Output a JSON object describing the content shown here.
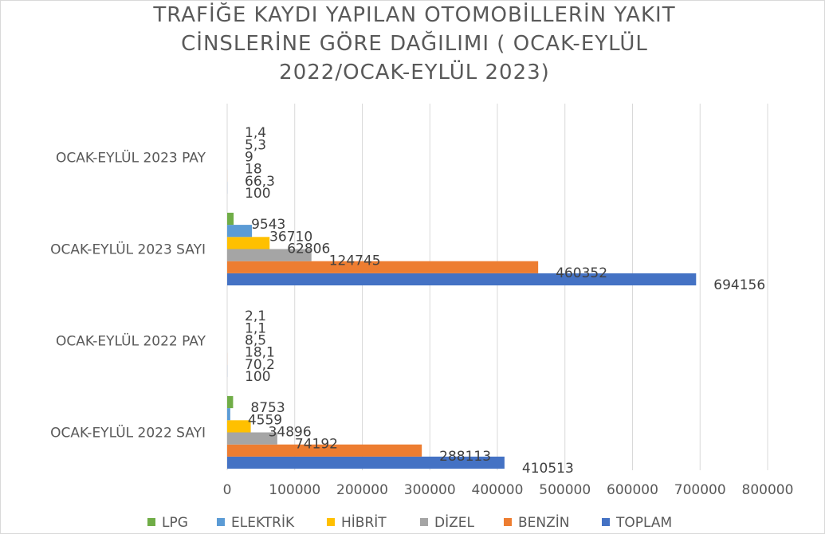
{
  "chart_data": {
    "type": "bar",
    "orientation": "horizontal",
    "title_lines": [
      "TRAFİĞE KAYDI YAPILAN OTOMOBİLLERİN YAKIT",
      "CİNSLERİNE GÖRE DAĞILIMI ( OCAK-EYLÜL",
      "2022/OCAK-EYLÜL 2023)"
    ],
    "categories": [
      "OCAK-EYLÜL 2022 SAYI",
      "OCAK-EYLÜL 2022 PAY",
      "OCAK-EYLÜL 2023 SAYI",
      "OCAK-EYLÜL 2023 PAY"
    ],
    "series": [
      {
        "name": "TOPLAM",
        "color": "#4472c4",
        "values": [
          410513,
          100,
          694156,
          100
        ],
        "labels": [
          "410513",
          "100",
          "694156",
          "100"
        ]
      },
      {
        "name": "BENZİN",
        "color": "#ed7d31",
        "values": [
          288113,
          70.2,
          460352,
          66.3
        ],
        "labels": [
          "288113",
          "70,2",
          "460352",
          "66,3"
        ]
      },
      {
        "name": "DİZEL",
        "color": "#a5a5a5",
        "values": [
          74192,
          18.1,
          124745,
          18
        ],
        "labels": [
          "74192",
          "18,1",
          "124745",
          "18"
        ]
      },
      {
        "name": "HİBRİT",
        "color": "#ffc000",
        "values": [
          34896,
          8.5,
          62806,
          9
        ],
        "labels": [
          "34896",
          "8,5",
          "62806",
          "9"
        ]
      },
      {
        "name": "ELEKTRİK",
        "color": "#5b9bd5",
        "values": [
          4559,
          1.1,
          36710,
          5.3
        ],
        "labels": [
          "4559",
          "1,1",
          "36710",
          "5,3"
        ]
      },
      {
        "name": "LPG",
        "color": "#70ad47",
        "values": [
          8753,
          2.1,
          9543,
          1.4
        ],
        "labels": [
          "8753",
          "2,1",
          "9543",
          "1,4"
        ]
      }
    ],
    "legend_order": [
      "LPG",
      "ELEKTRİK",
      "HİBRİT",
      "DİZEL",
      "BENZİN",
      "TOPLAM"
    ],
    "xlim": [
      0,
      800000
    ],
    "xticks": [
      0,
      100000,
      200000,
      300000,
      400000,
      500000,
      600000,
      700000,
      800000
    ],
    "xtick_labels": [
      "0",
      "100000",
      "200000",
      "300000",
      "400000",
      "500000",
      "600000",
      "700000",
      "800000"
    ],
    "grid": true,
    "legend_position": "bottom",
    "colors": {
      "text": "#595959",
      "grid": "#d9d9d9"
    }
  }
}
